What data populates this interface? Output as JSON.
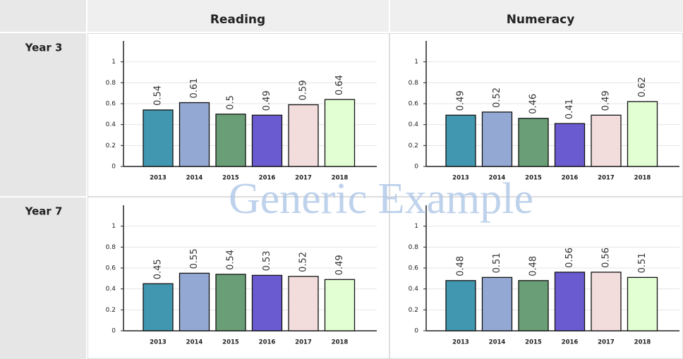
{
  "table": {
    "columns": [
      "Reading",
      "Numeracy"
    ],
    "rows": [
      "Year 3",
      "Year 7"
    ]
  },
  "watermark": "Generic Example",
  "chart_data": [
    {
      "type": "bar",
      "categories": [
        "2013",
        "2014",
        "2015",
        "2016",
        "2017",
        "2018"
      ],
      "values": [
        0.54,
        0.61,
        0.5,
        0.49,
        0.59,
        0.64
      ],
      "colors": [
        "#4196b0",
        "#94a8d4",
        "#6a9e76",
        "#6b5bd1",
        "#f2dcdc",
        "#e2ffd4"
      ],
      "ylim": [
        0,
        1.2
      ],
      "yticks": [
        0,
        0.2,
        0.4,
        0.6,
        0.8,
        1
      ],
      "grid": true
    },
    {
      "type": "bar",
      "categories": [
        "2013",
        "2014",
        "2015",
        "2016",
        "2017",
        "2018"
      ],
      "values": [
        0.49,
        0.52,
        0.46,
        0.41,
        0.49,
        0.62
      ],
      "colors": [
        "#4196b0",
        "#94a8d4",
        "#6a9e76",
        "#6b5bd1",
        "#f2dcdc",
        "#e2ffd4"
      ],
      "ylim": [
        0,
        1.2
      ],
      "yticks": [
        0,
        0.2,
        0.4,
        0.6,
        0.8,
        1
      ],
      "grid": true
    },
    {
      "type": "bar",
      "categories": [
        "2013",
        "2014",
        "2015",
        "2016",
        "2017",
        "2018"
      ],
      "values": [
        0.45,
        0.55,
        0.54,
        0.53,
        0.52,
        0.49
      ],
      "colors": [
        "#4196b0",
        "#94a8d4",
        "#6a9e76",
        "#6b5bd1",
        "#f2dcdc",
        "#e2ffd4"
      ],
      "ylim": [
        0,
        1.2
      ],
      "yticks": [
        0,
        0.2,
        0.4,
        0.6,
        0.8,
        1
      ],
      "grid": true
    },
    {
      "type": "bar",
      "categories": [
        "2013",
        "2014",
        "2015",
        "2016",
        "2017",
        "2018"
      ],
      "values": [
        0.48,
        0.51,
        0.48,
        0.56,
        0.56,
        0.51
      ],
      "colors": [
        "#4196b0",
        "#94a8d4",
        "#6a9e76",
        "#6b5bd1",
        "#f2dcdc",
        "#e2ffd4"
      ],
      "ylim": [
        0,
        1.2
      ],
      "yticks": [
        0,
        0.2,
        0.4,
        0.6,
        0.8,
        1
      ],
      "grid": true
    }
  ]
}
